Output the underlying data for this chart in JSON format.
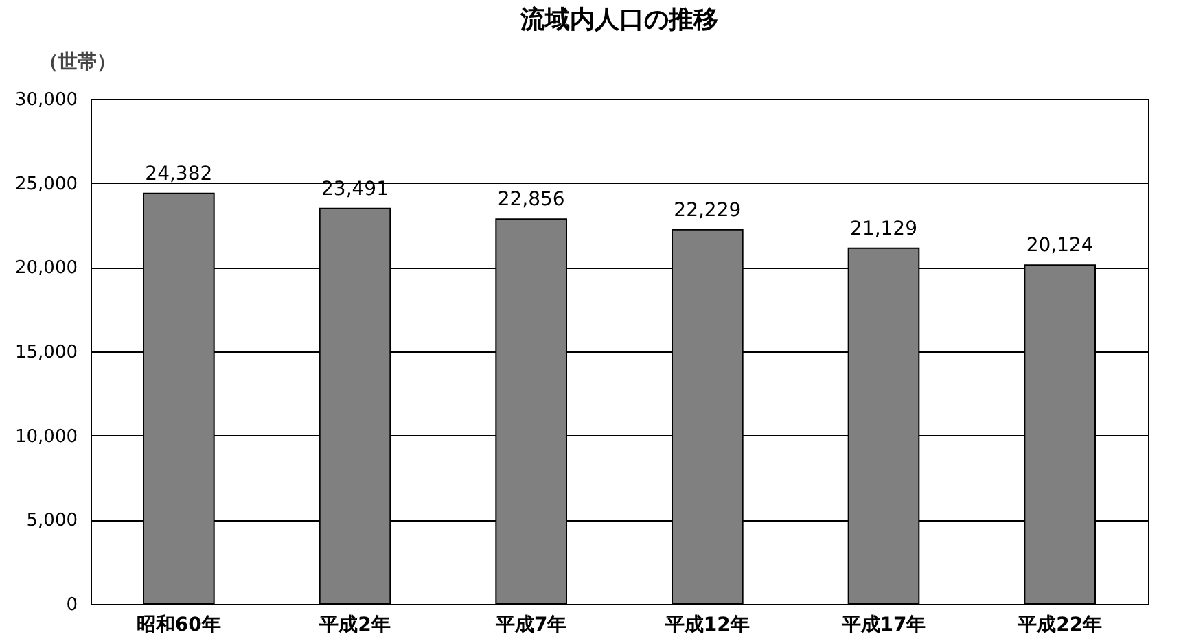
{
  "chart_data": {
    "type": "bar",
    "title": "流域内人口の推移",
    "ylabel": "（世帯）",
    "categories": [
      "昭和60年",
      "平成2年",
      "平成7年",
      "平成12年",
      "平成17年",
      "平成22年"
    ],
    "values": [
      24382,
      23491,
      22856,
      22229,
      21129,
      20124
    ],
    "color": "#808080",
    "value_labels": [
      "24,382",
      "23,491",
      "22,856",
      "22,229",
      "21,129",
      "20,124"
    ],
    "ylim": [
      0,
      30000
    ],
    "yticks": [
      0,
      {
        "value": 5000,
        "label": "5,000"
      },
      {
        "value": 10000,
        "label": "10,000"
      },
      {
        "value": 15000,
        "label": "15,000"
      },
      {
        "value": 20000,
        "label": "20,000"
      },
      {
        "value": 25000,
        "label": "25,000"
      },
      {
        "value": 30000,
        "label": "30,000"
      }
    ],
    "grid": "y"
  }
}
